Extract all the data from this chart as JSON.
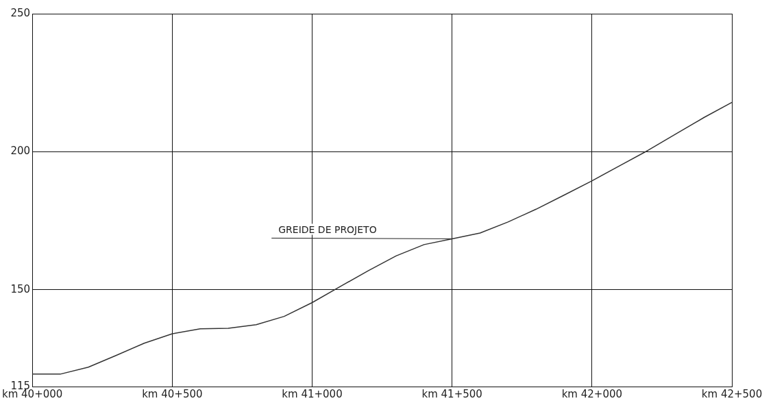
{
  "chart_data": {
    "type": "line",
    "categories": [
      "km 40+000",
      null,
      null,
      null,
      null,
      "km 40+500",
      null,
      null,
      null,
      null,
      "km 41+000",
      null,
      null,
      null,
      null,
      "km 41+500",
      null,
      null,
      null,
      null,
      "km 42+000",
      null,
      null,
      null,
      null,
      "km 42+500"
    ],
    "series": [
      {
        "color": "#333333",
        "values": [
          119.5,
          119.5,
          122,
          126.3,
          130.7,
          134.1,
          135.9,
          136.1,
          137.4,
          140.4,
          145.4,
          151.2,
          156.9,
          162.3,
          166.4,
          168.5,
          170.6,
          174.6,
          179.2,
          184.3,
          189.5,
          195,
          200.5,
          206.5,
          212.4,
          217.9
        ]
      }
    ],
    "ylim": [
      115,
      250
    ],
    "yticks": [
      115,
      150,
      200,
      250
    ],
    "grid": true,
    "legend": false,
    "marker": "none",
    "line_style": "solid",
    "annotations": [
      {
        "text": "GREIDE DE PROJETO",
        "x": "km 41+500",
        "y": 168.5
      }
    ]
  }
}
